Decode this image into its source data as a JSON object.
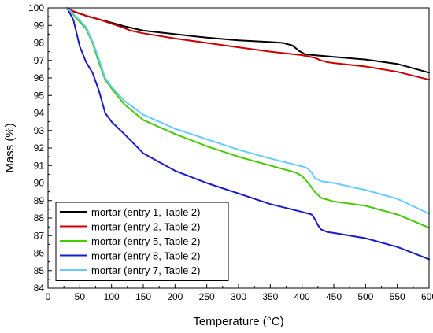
{
  "chart_data": {
    "type": "line",
    "title": "",
    "xlabel": "Temperature (°C)",
    "ylabel": "Mass (%)",
    "xlim": [
      0,
      600
    ],
    "ylim": [
      84,
      100
    ],
    "xticks": [
      0,
      50,
      100,
      150,
      200,
      250,
      300,
      350,
      400,
      450,
      500,
      550,
      600
    ],
    "yticks": [
      84,
      85,
      86,
      87,
      88,
      89,
      90,
      91,
      92,
      93,
      94,
      95,
      96,
      97,
      98,
      99,
      100
    ],
    "grid": false,
    "legend_position": "bottom-left",
    "series": [
      {
        "name": "mortar (entry 1, Table 2)",
        "color": "#000000",
        "x": [
          33,
          40,
          60,
          80,
          100,
          120,
          150,
          200,
          250,
          300,
          350,
          370,
          385,
          395,
          405,
          420,
          450,
          500,
          550,
          600
        ],
        "y": [
          99.95,
          99.8,
          99.55,
          99.35,
          99.15,
          98.95,
          98.7,
          98.5,
          98.3,
          98.15,
          98.05,
          98.0,
          97.85,
          97.55,
          97.35,
          97.3,
          97.2,
          97.05,
          96.8,
          96.3
        ]
      },
      {
        "name": "mortar (entry 2, Table 2)",
        "color": "#cc0000",
        "x": [
          33,
          40,
          60,
          80,
          100,
          120,
          130,
          150,
          200,
          250,
          300,
          350,
          400,
          420,
          430,
          440,
          450,
          500,
          550,
          600
        ],
        "y": [
          99.95,
          99.8,
          99.55,
          99.35,
          99.1,
          98.85,
          98.7,
          98.55,
          98.25,
          98.0,
          97.75,
          97.5,
          97.3,
          97.15,
          97.0,
          96.9,
          96.85,
          96.65,
          96.35,
          95.9
        ]
      },
      {
        "name": "mortar (entry 5, Table 2)",
        "color": "#44cc00",
        "x": [
          30,
          40,
          50,
          60,
          70,
          80,
          90,
          100,
          120,
          150,
          200,
          250,
          300,
          350,
          390,
          400,
          410,
          420,
          430,
          440,
          450,
          500,
          550,
          600
        ],
        "y": [
          100,
          99.6,
          99.2,
          98.8,
          98.0,
          96.9,
          95.9,
          95.4,
          94.5,
          93.6,
          92.8,
          92.1,
          91.5,
          91.0,
          90.6,
          90.4,
          90.0,
          89.5,
          89.15,
          89.05,
          88.95,
          88.7,
          88.2,
          87.45
        ]
      },
      {
        "name": "mortar (entry 8, Table 2)",
        "color": "#1a1ac8",
        "x": [
          30,
          40,
          50,
          60,
          70,
          80,
          90,
          100,
          120,
          150,
          200,
          250,
          300,
          350,
          400,
          415,
          420,
          425,
          430,
          440,
          450,
          500,
          550,
          600
        ],
        "y": [
          100,
          99.3,
          97.8,
          96.9,
          96.3,
          95.3,
          94.0,
          93.5,
          92.8,
          91.7,
          90.7,
          90.0,
          89.4,
          88.8,
          88.35,
          88.2,
          87.95,
          87.6,
          87.35,
          87.2,
          87.15,
          86.85,
          86.35,
          85.65
        ]
      },
      {
        "name": "mortar (entry 7, Table 2)",
        "color": "#66ccff",
        "x": [
          30,
          40,
          50,
          60,
          70,
          80,
          90,
          100,
          120,
          150,
          200,
          250,
          300,
          350,
          400,
          405,
          410,
          415,
          420,
          430,
          450,
          500,
          550,
          600
        ],
        "y": [
          100,
          99.65,
          99.3,
          98.9,
          98.1,
          97.1,
          96.0,
          95.5,
          94.7,
          93.9,
          93.1,
          92.5,
          91.9,
          91.4,
          90.95,
          90.9,
          90.8,
          90.6,
          90.3,
          90.1,
          90.0,
          89.6,
          89.1,
          88.25
        ]
      }
    ]
  }
}
